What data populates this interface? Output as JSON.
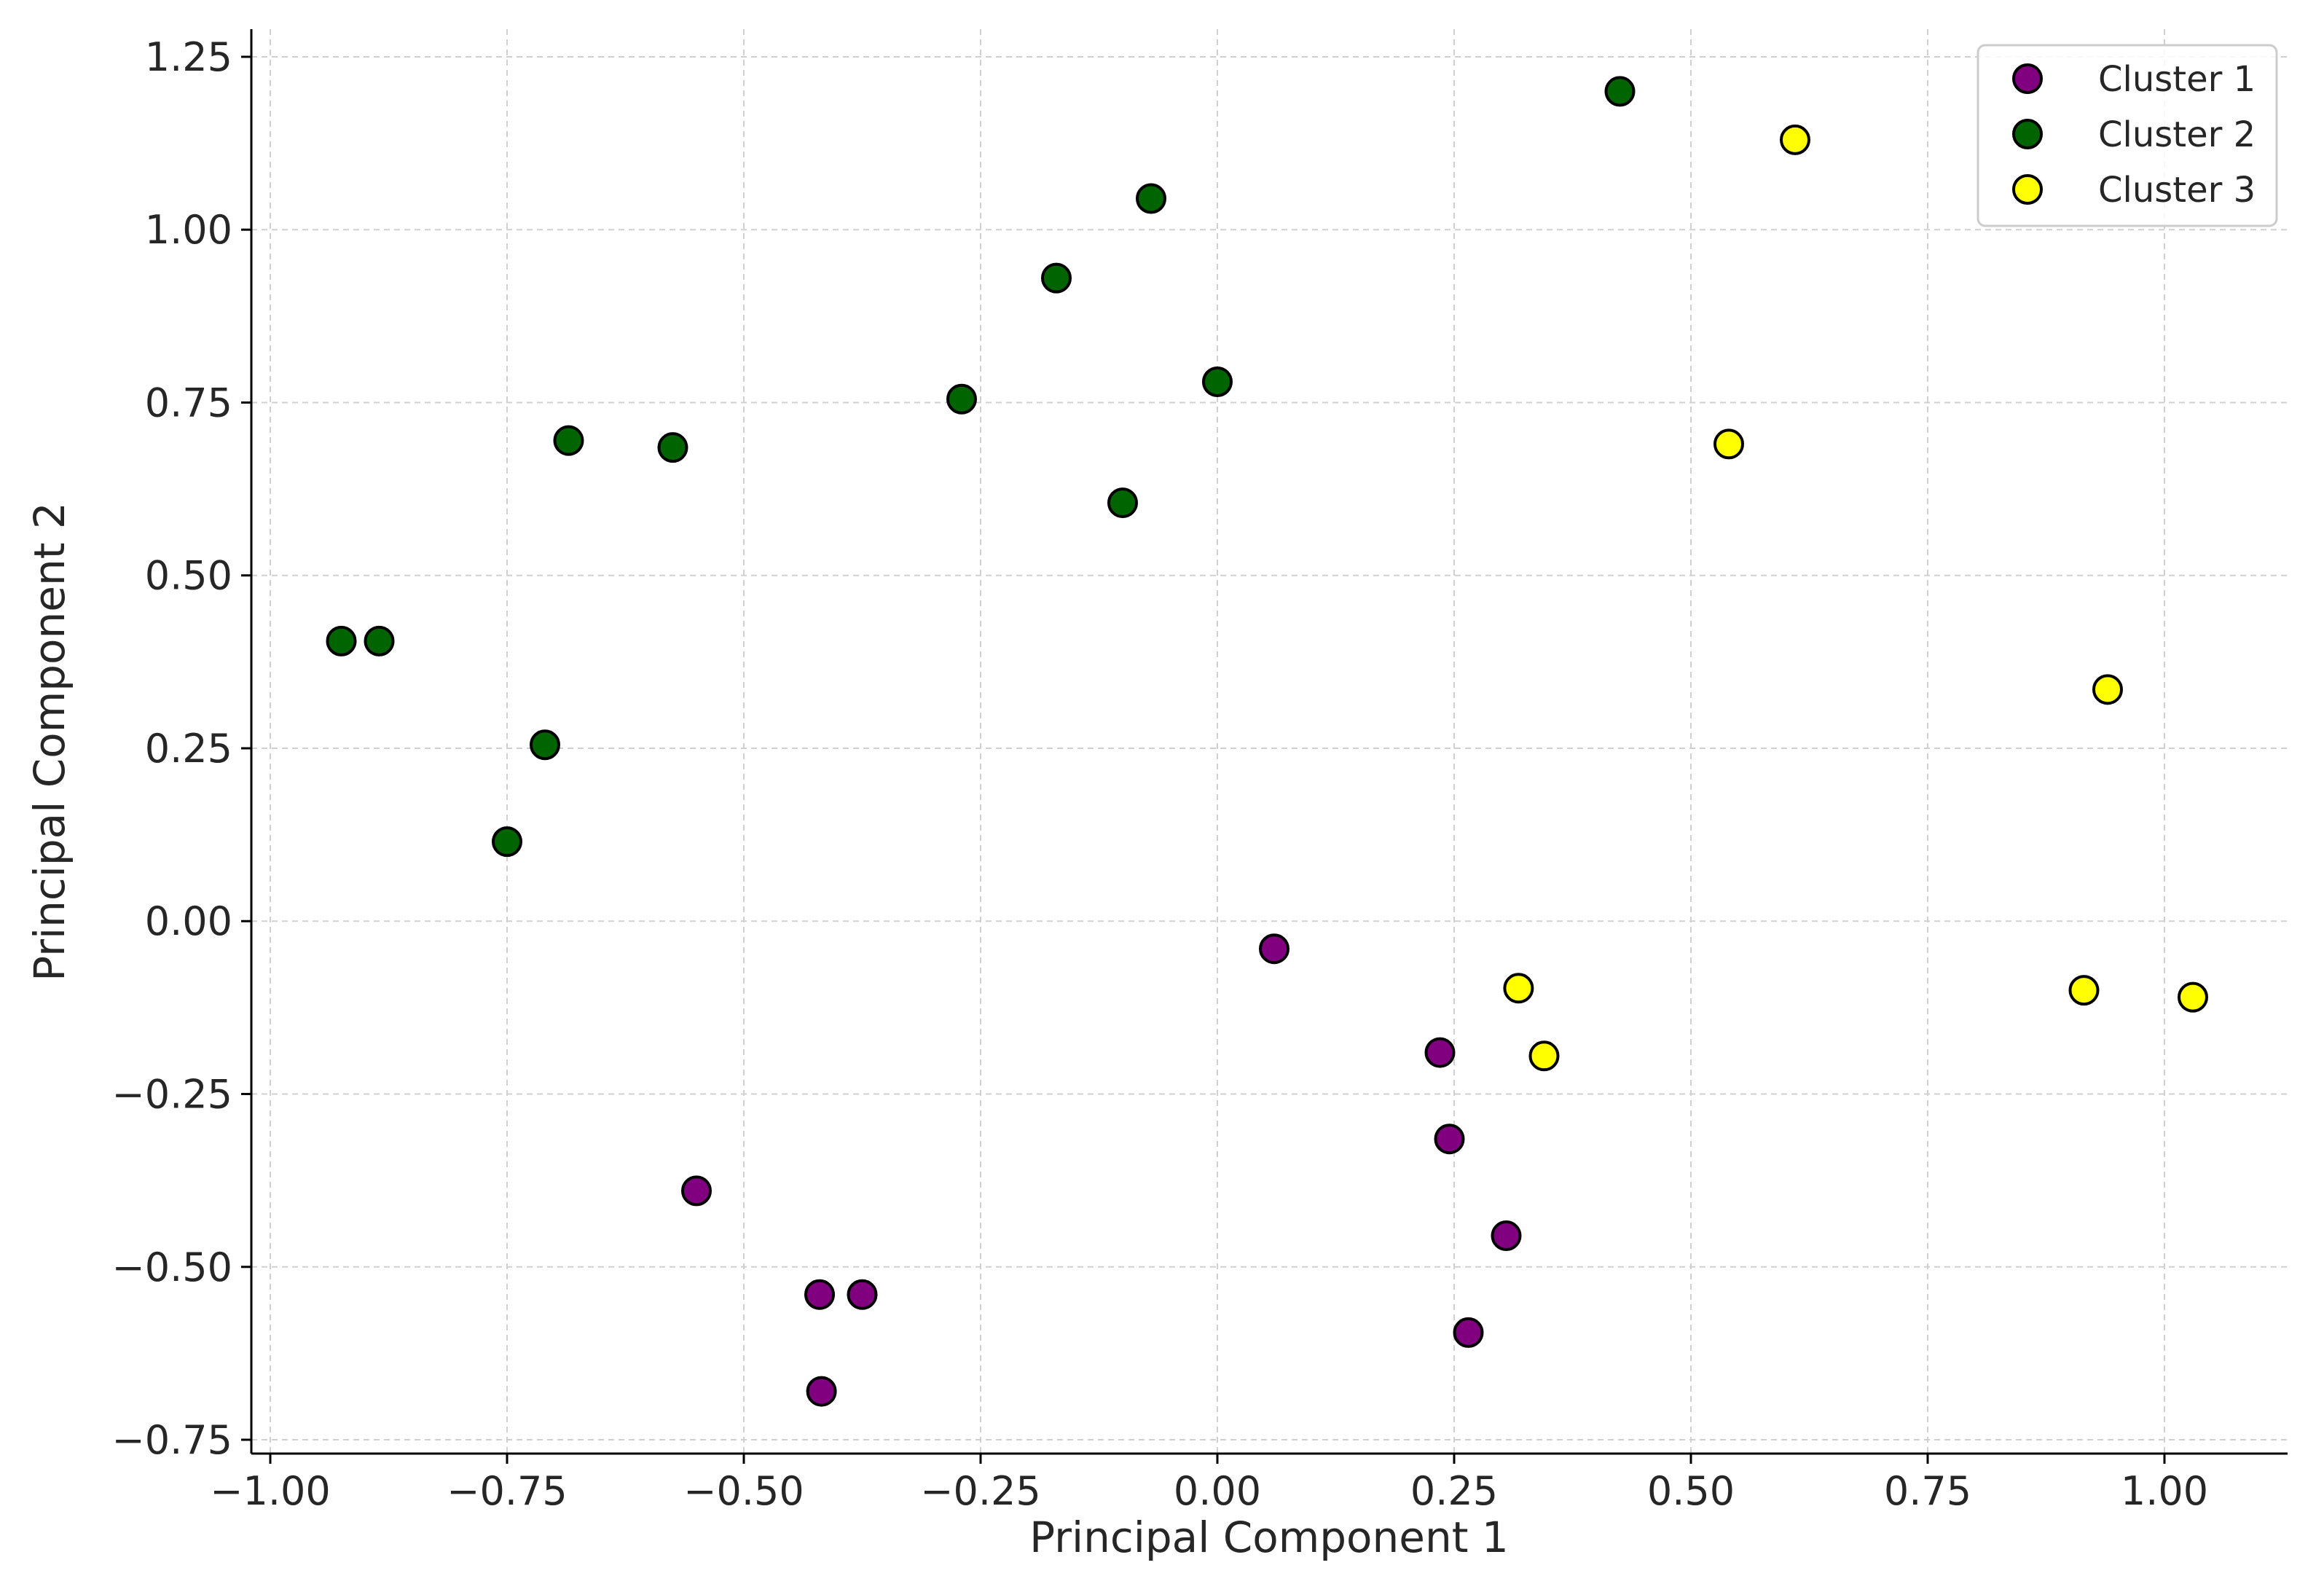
{
  "chart_data": {
    "type": "scatter",
    "title": "",
    "xlabel": "Principal Component 1",
    "ylabel": "Principal Component 2",
    "xlim": [
      -1.02,
      1.13
    ],
    "ylim": [
      -0.77,
      1.29
    ],
    "x_ticks": [
      -1.0,
      -0.75,
      -0.5,
      -0.25,
      0.0,
      0.25,
      0.5,
      0.75,
      1.0
    ],
    "x_tick_labels": [
      "−1.00",
      "−0.75",
      "−0.50",
      "−0.25",
      "0.00",
      "0.25",
      "0.50",
      "0.75",
      "1.00"
    ],
    "y_ticks": [
      -0.75,
      -0.5,
      -0.25,
      0.0,
      0.25,
      0.5,
      0.75,
      1.0,
      1.25
    ],
    "y_tick_labels": [
      "−0.75",
      "−0.50",
      "−0.25",
      "0.00",
      "0.25",
      "0.50",
      "0.75",
      "1.00",
      "1.25"
    ],
    "grid": true,
    "legend_position": "top-right",
    "series": [
      {
        "name": "Cluster 1",
        "color": "#800080",
        "points": [
          [
            0.06,
            -0.04
          ],
          [
            0.235,
            -0.19
          ],
          [
            0.245,
            -0.315
          ],
          [
            0.305,
            -0.455
          ],
          [
            0.265,
            -0.595
          ],
          [
            -0.55,
            -0.39
          ],
          [
            -0.42,
            -0.54
          ],
          [
            -0.375,
            -0.54
          ],
          [
            -0.418,
            -0.68
          ]
        ]
      },
      {
        "name": "Cluster 2",
        "color": "#006400",
        "points": [
          [
            0.425,
            1.2
          ],
          [
            -0.07,
            1.045
          ],
          [
            -0.17,
            0.93
          ],
          [
            -0.27,
            0.755
          ],
          [
            0.0,
            0.78
          ],
          [
            -0.1,
            0.605
          ],
          [
            -0.685,
            0.695
          ],
          [
            -0.575,
            0.685
          ],
          [
            -0.925,
            0.405
          ],
          [
            -0.885,
            0.405
          ],
          [
            -0.71,
            0.255
          ],
          [
            -0.75,
            0.115
          ]
        ]
      },
      {
        "name": "Cluster 3",
        "color": "#ffff00",
        "points": [
          [
            0.61,
            1.13
          ],
          [
            0.54,
            0.69
          ],
          [
            0.94,
            0.335
          ],
          [
            0.915,
            -0.1
          ],
          [
            1.03,
            -0.11
          ],
          [
            0.318,
            -0.097
          ],
          [
            0.345,
            -0.195
          ]
        ]
      }
    ]
  }
}
